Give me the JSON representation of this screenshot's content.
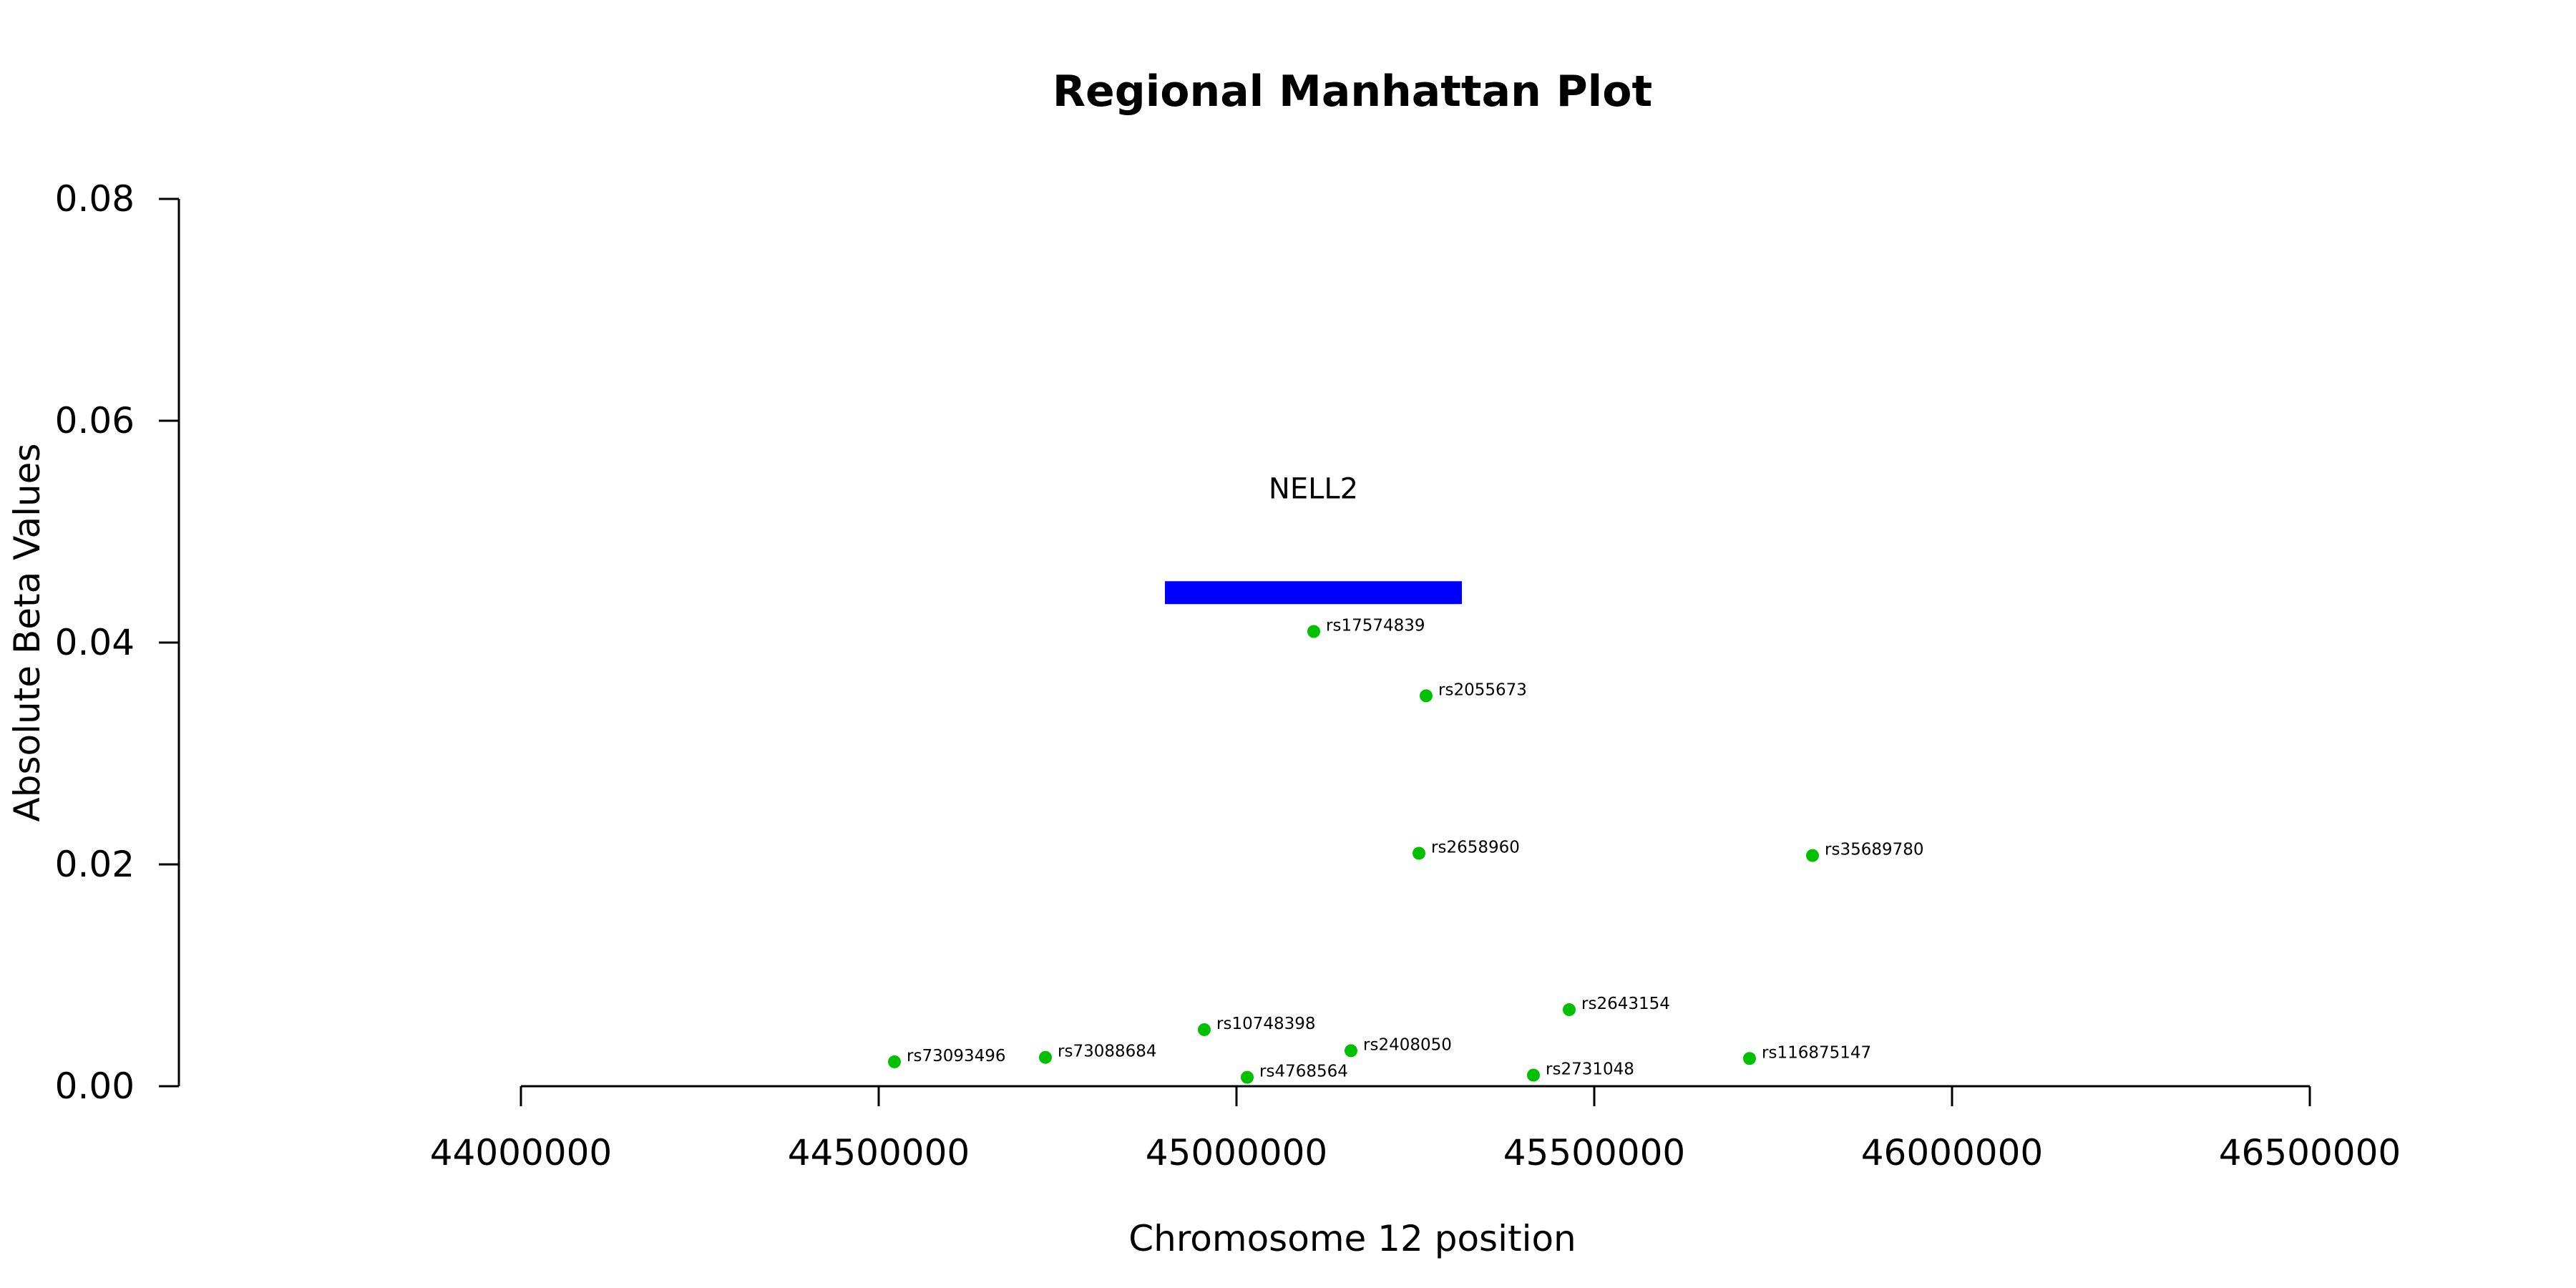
{
  "chart_data": {
    "type": "scatter",
    "title": "Regional Manhattan Plot",
    "xlabel": "Chromosome 12 position",
    "ylabel": "Absolute Beta Values",
    "xlim": [
      44000000,
      46500000
    ],
    "ylim": [
      0,
      0.08
    ],
    "xticks": [
      44000000,
      44500000,
      45000000,
      45500000,
      46000000,
      46500000
    ],
    "xtick_labels": [
      "44000000",
      "44500000",
      "45000000",
      "45500000",
      "46000000",
      "46500000"
    ],
    "yticks": [
      0,
      0.02,
      0.04,
      0.06,
      0.08
    ],
    "ytick_labels": [
      "0.00",
      "0.02",
      "0.04",
      "0.06",
      "0.08"
    ],
    "grid": false,
    "point_color": "#00C000",
    "gene_color": "#0000FF",
    "genes": [
      {
        "name": "NELL2",
        "start": 44900000,
        "end": 45315000,
        "y": 0.0445,
        "label_y": 0.053
      }
    ],
    "points": [
      {
        "label": "rs17574839",
        "x": 45108000,
        "y": 0.041
      },
      {
        "label": "rs2055673",
        "x": 45265000,
        "y": 0.0352
      },
      {
        "label": "rs2658960",
        "x": 45255000,
        "y": 0.021
      },
      {
        "label": "rs35689780",
        "x": 45805000,
        "y": 0.0208
      },
      {
        "label": "rs2643154",
        "x": 45465000,
        "y": 0.0069
      },
      {
        "label": "rs10748398",
        "x": 44955000,
        "y": 0.0051
      },
      {
        "label": "rs2408050",
        "x": 45160000,
        "y": 0.0032
      },
      {
        "label": "rs73093496",
        "x": 44522000,
        "y": 0.0022
      },
      {
        "label": "rs73088684",
        "x": 44733000,
        "y": 0.0026
      },
      {
        "label": "rs116875147",
        "x": 45717000,
        "y": 0.0025
      },
      {
        "label": "rs4768564",
        "x": 45015000,
        "y": 0.0008
      },
      {
        "label": "rs2731048",
        "x": 45415000,
        "y": 0.001
      }
    ]
  }
}
